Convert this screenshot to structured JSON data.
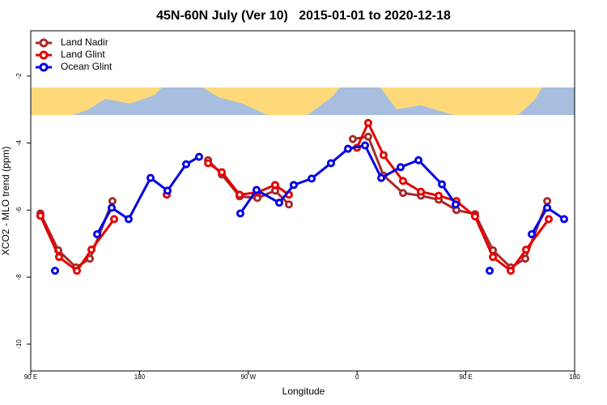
{
  "chart_data": {
    "type": "line",
    "title": "45N-60N July (Ver 10)   2015-01-01 to 2020-12-18",
    "xlabel": "Longitude",
    "ylabel": "XCO2 - MLO trend (ppm)",
    "xlim": [
      90,
      540
    ],
    "ylim": [
      -10.8,
      -0.65
    ],
    "xticks": [
      {
        "value": 90,
        "label": "90 E"
      },
      {
        "value": 180,
        "label": "180"
      },
      {
        "value": 270,
        "label": "90 W"
      },
      {
        "value": 360,
        "label": "0"
      },
      {
        "value": 450,
        "label": "90 E"
      },
      {
        "value": 540,
        "label": "180"
      }
    ],
    "yticks": [
      -2,
      -4,
      -6,
      -8,
      -10
    ],
    "legend": "top-left",
    "series": [
      {
        "name": "Land Nadir",
        "color": "#a52a2a",
        "x": [
          98,
          112.8,
          127.5,
          138.9,
          157.6,
          null,
          236.7,
          248.1,
          262.8,
          277.5,
          292.2,
          303.6,
          null,
          356.5,
          369.2,
          381.9,
          398,
          412.8,
          427.5,
          442.2,
          457.6,
          472.4,
          487.1,
          499.2,
          517.3
        ],
        "values": [
          -6.1,
          -7.2,
          -7.71,
          -7.45,
          -5.73,
          null,
          -4.51,
          -4.94,
          -5.59,
          -5.64,
          -5.42,
          -5.83,
          null,
          -3.88,
          -3.81,
          -4.97,
          -5.49,
          -5.57,
          -5.69,
          -6.0,
          -6.12,
          -7.2,
          -7.71,
          -7.45,
          -5.73
        ]
      },
      {
        "name": "Land Glint",
        "color": "#e60000",
        "x": [
          98,
          113.4,
          128.2,
          140.2,
          159,
          null,
          202.5,
          null,
          236.7,
          248.1,
          262.8,
          277.5,
          292.2,
          303.6,
          null,
          359.9,
          369.2,
          381.9,
          398,
          412.8,
          427.5,
          442.2,
          457.6,
          472.4,
          487.1,
          499.8,
          518.6
        ],
        "values": [
          -6.17,
          -7.4,
          -7.81,
          -7.18,
          -6.27,
          null,
          -5.54,
          null,
          -4.6,
          -4.87,
          -5.54,
          -5.47,
          -5.25,
          -5.54,
          null,
          -4.14,
          -3.4,
          -4.36,
          -5.13,
          -5.45,
          -5.57,
          -5.73,
          -6.19,
          -7.4,
          -7.81,
          -7.18,
          -6.27
        ]
      },
      {
        "name": "Ocean Glint",
        "color": "#0000e6",
        "x": [
          110.1,
          null,
          144.9,
          157,
          171,
          189.1,
          203.2,
          218.6,
          229.3,
          null,
          263.4,
          276.8,
          295.6,
          307.6,
          322.4,
          338.4,
          352.5,
          366.6,
          380,
          396,
          410.8,
          430.2,
          441.6,
          null,
          469.7,
          null,
          504.5,
          517.3,
          531.3
        ],
        "values": [
          -7.81,
          null,
          -6.72,
          -5.93,
          -6.27,
          -5.04,
          -5.42,
          -4.63,
          -4.41,
          null,
          -6.1,
          -5.4,
          -5.78,
          -5.25,
          -5.06,
          -4.6,
          -4.17,
          -4.07,
          -5.04,
          -4.72,
          -4.51,
          -5.23,
          -5.83,
          null,
          -7.81,
          null,
          -6.72,
          -5.93,
          -6.27
        ]
      }
    ]
  }
}
